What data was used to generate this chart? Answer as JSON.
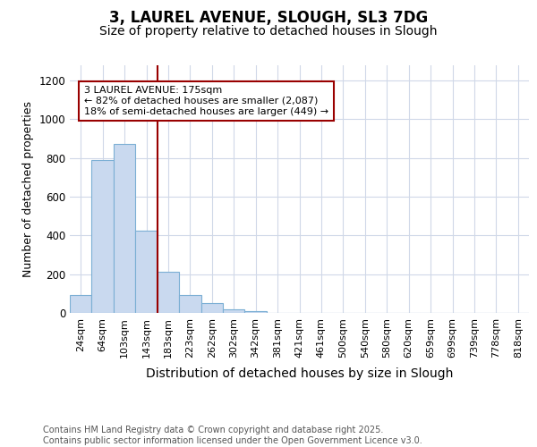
{
  "title_line1": "3, LAUREL AVENUE, SLOUGH, SL3 7DG",
  "title_line2": "Size of property relative to detached houses in Slough",
  "xlabel": "Distribution of detached houses by size in Slough",
  "ylabel": "Number of detached properties",
  "categories": [
    "24sqm",
    "64sqm",
    "103sqm",
    "143sqm",
    "183sqm",
    "223sqm",
    "262sqm",
    "302sqm",
    "342sqm",
    "381sqm",
    "421sqm",
    "461sqm",
    "500sqm",
    "540sqm",
    "580sqm",
    "620sqm",
    "659sqm",
    "699sqm",
    "739sqm",
    "778sqm",
    "818sqm"
  ],
  "values": [
    90,
    790,
    870,
    425,
    210,
    90,
    50,
    20,
    10,
    2,
    0,
    0,
    0,
    0,
    0,
    0,
    0,
    0,
    0,
    2,
    0
  ],
  "bar_color": "#C9D9EF",
  "bar_edge_color": "#7BAFD4",
  "vline_index": 4,
  "vline_color": "#990000",
  "annotation_line1": "3 LAUREL AVENUE: 175sqm",
  "annotation_line2": "← 82% of detached houses are smaller (2,087)",
  "annotation_line3": "18% of semi-detached houses are larger (449) →",
  "annotation_box_facecolor": "#ffffff",
  "annotation_box_edgecolor": "#990000",
  "ylim": [
    0,
    1280
  ],
  "yticks": [
    0,
    200,
    400,
    600,
    800,
    1000,
    1200
  ],
  "background_color": "#ffffff",
  "plot_bg_color": "#ffffff",
  "grid_color": "#d0d8e8",
  "footer_line1": "Contains HM Land Registry data © Crown copyright and database right 2025.",
  "footer_line2": "Contains public sector information licensed under the Open Government Licence v3.0.",
  "title_fontsize": 12,
  "subtitle_fontsize": 10,
  "tick_fontsize": 8,
  "ylabel_fontsize": 9,
  "xlabel_fontsize": 10,
  "footer_fontsize": 7
}
